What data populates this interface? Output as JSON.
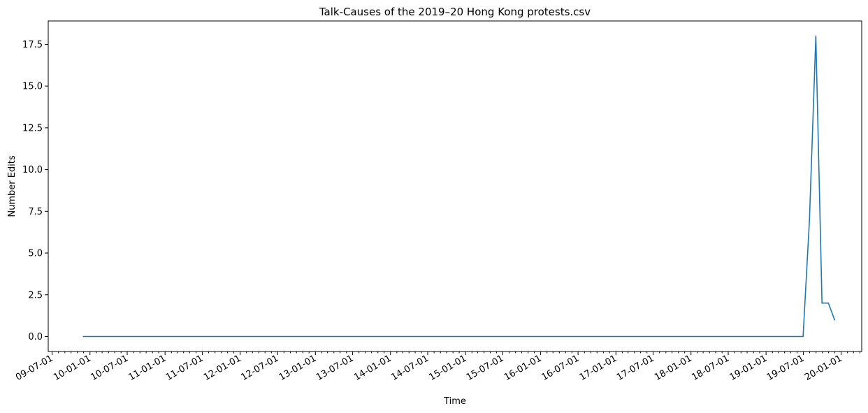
{
  "chart_data": {
    "type": "line",
    "title": "Talk-Causes of the 2019–20 Hong Kong protests.csv",
    "xlabel": "Time",
    "ylabel": "Number Edits",
    "ylim": [
      -0.9,
      18.9
    ],
    "xlim": [
      "2009-06-12",
      "2020-04-10"
    ],
    "grid": false,
    "legend": "none",
    "x_tick_labels": [
      "09-07-01",
      "10-01-01",
      "10-07-01",
      "11-01-01",
      "11-07-01",
      "12-01-01",
      "12-07-01",
      "13-01-01",
      "13-07-01",
      "14-01-01",
      "14-07-01",
      "15-01-01",
      "15-07-01",
      "16-01-01",
      "16-07-01",
      "17-01-01",
      "17-07-01",
      "18-01-01",
      "18-07-01",
      "19-01-01",
      "19-07-01",
      "20-01-01"
    ],
    "y_ticks": [
      0.0,
      2.5,
      5.0,
      7.5,
      10.0,
      12.5,
      15.0,
      17.5
    ],
    "y_tick_labels": [
      "0.0",
      "2.5",
      "5.0",
      "7.5",
      "10.0",
      "12.5",
      "15.0",
      "17.5"
    ],
    "series": [
      {
        "color": "#1f77b4",
        "x": [
          "2009-11-30",
          "2019-06-30",
          "2019-07-31",
          "2019-08-31",
          "2019-09-30",
          "2019-10-31",
          "2019-11-30"
        ],
        "values": [
          0,
          0,
          7,
          18,
          2,
          2,
          1
        ]
      }
    ]
  }
}
